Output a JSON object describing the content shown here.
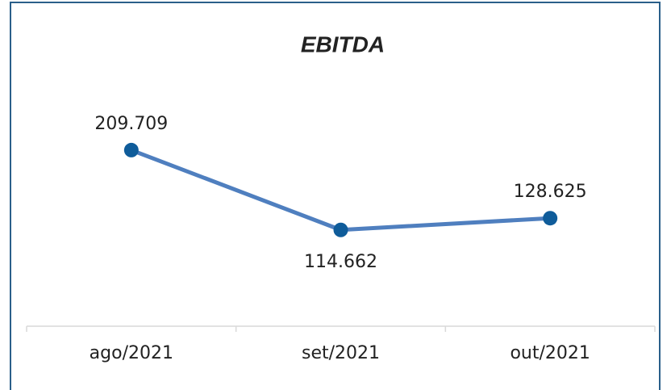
{
  "chart_data": {
    "type": "line",
    "title": "EBITDA",
    "categories": [
      "ago/2021",
      "set/2021",
      "out/2021"
    ],
    "series": [
      {
        "name": "EBITDA",
        "color": "#4f7fbf",
        "marker_color": "#0f5c9a",
        "values": [
          209709,
          114662,
          128625
        ],
        "value_labels": [
          "209.709",
          "114.662",
          "128.625"
        ]
      }
    ],
    "ylim": [
      0,
      250000
    ]
  }
}
